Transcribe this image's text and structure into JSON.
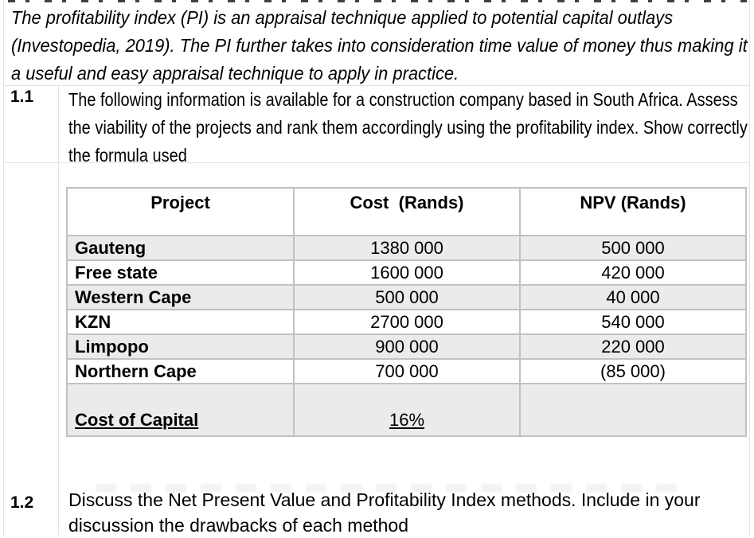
{
  "intro": {
    "lines": [
      "The profitability index (PI) is an appraisal technique applied to potential capital outlays",
      "(Investopedia, 2019). The PI further takes into consideration time value of money thus making it",
      "a useful and easy appraisal technique to apply in practice."
    ]
  },
  "sections": [
    {
      "number": "1.1",
      "lines": [
        "The following information is available for a construction company based in South Africa. Assess",
        "the viability of the projects and rank them accordingly using the profitability index. Show correctly",
        "the formula used"
      ]
    },
    {
      "number": "1.2",
      "lines": [
        "Discuss the Net Present Value and Profitability Index methods. Include in your",
        "discussion the drawbacks of each method"
      ]
    }
  ],
  "table": {
    "headers": [
      "Project",
      "Cost  (Rands)",
      "NPV (Rands)"
    ],
    "rows": [
      {
        "project": "Gauteng",
        "cost": "1380 000",
        "npv": "500 000",
        "shaded": true
      },
      {
        "project": "Free state",
        "cost": "1600 000",
        "npv": "420 000",
        "shaded": false
      },
      {
        "project": "Western Cape",
        "cost": "500 000",
        "npv": "40 000",
        "shaded": true
      },
      {
        "project": "KZN",
        "cost": "2700 000",
        "npv": "540 000",
        "shaded": false
      },
      {
        "project": "Limpopo",
        "cost": "900 000",
        "npv": "220 000",
        "shaded": true
      },
      {
        "project": "Northern Cape",
        "cost": "700 000",
        "npv": "(85 000)",
        "shaded": false
      }
    ],
    "footer": {
      "label": "Cost of Capital",
      "value": "16%",
      "npv": ""
    }
  },
  "colors": {
    "row_shade": "#ebebeb",
    "table_border": "#c1c1c1",
    "grid_line": "#e3e3e3",
    "text": "#000000"
  }
}
